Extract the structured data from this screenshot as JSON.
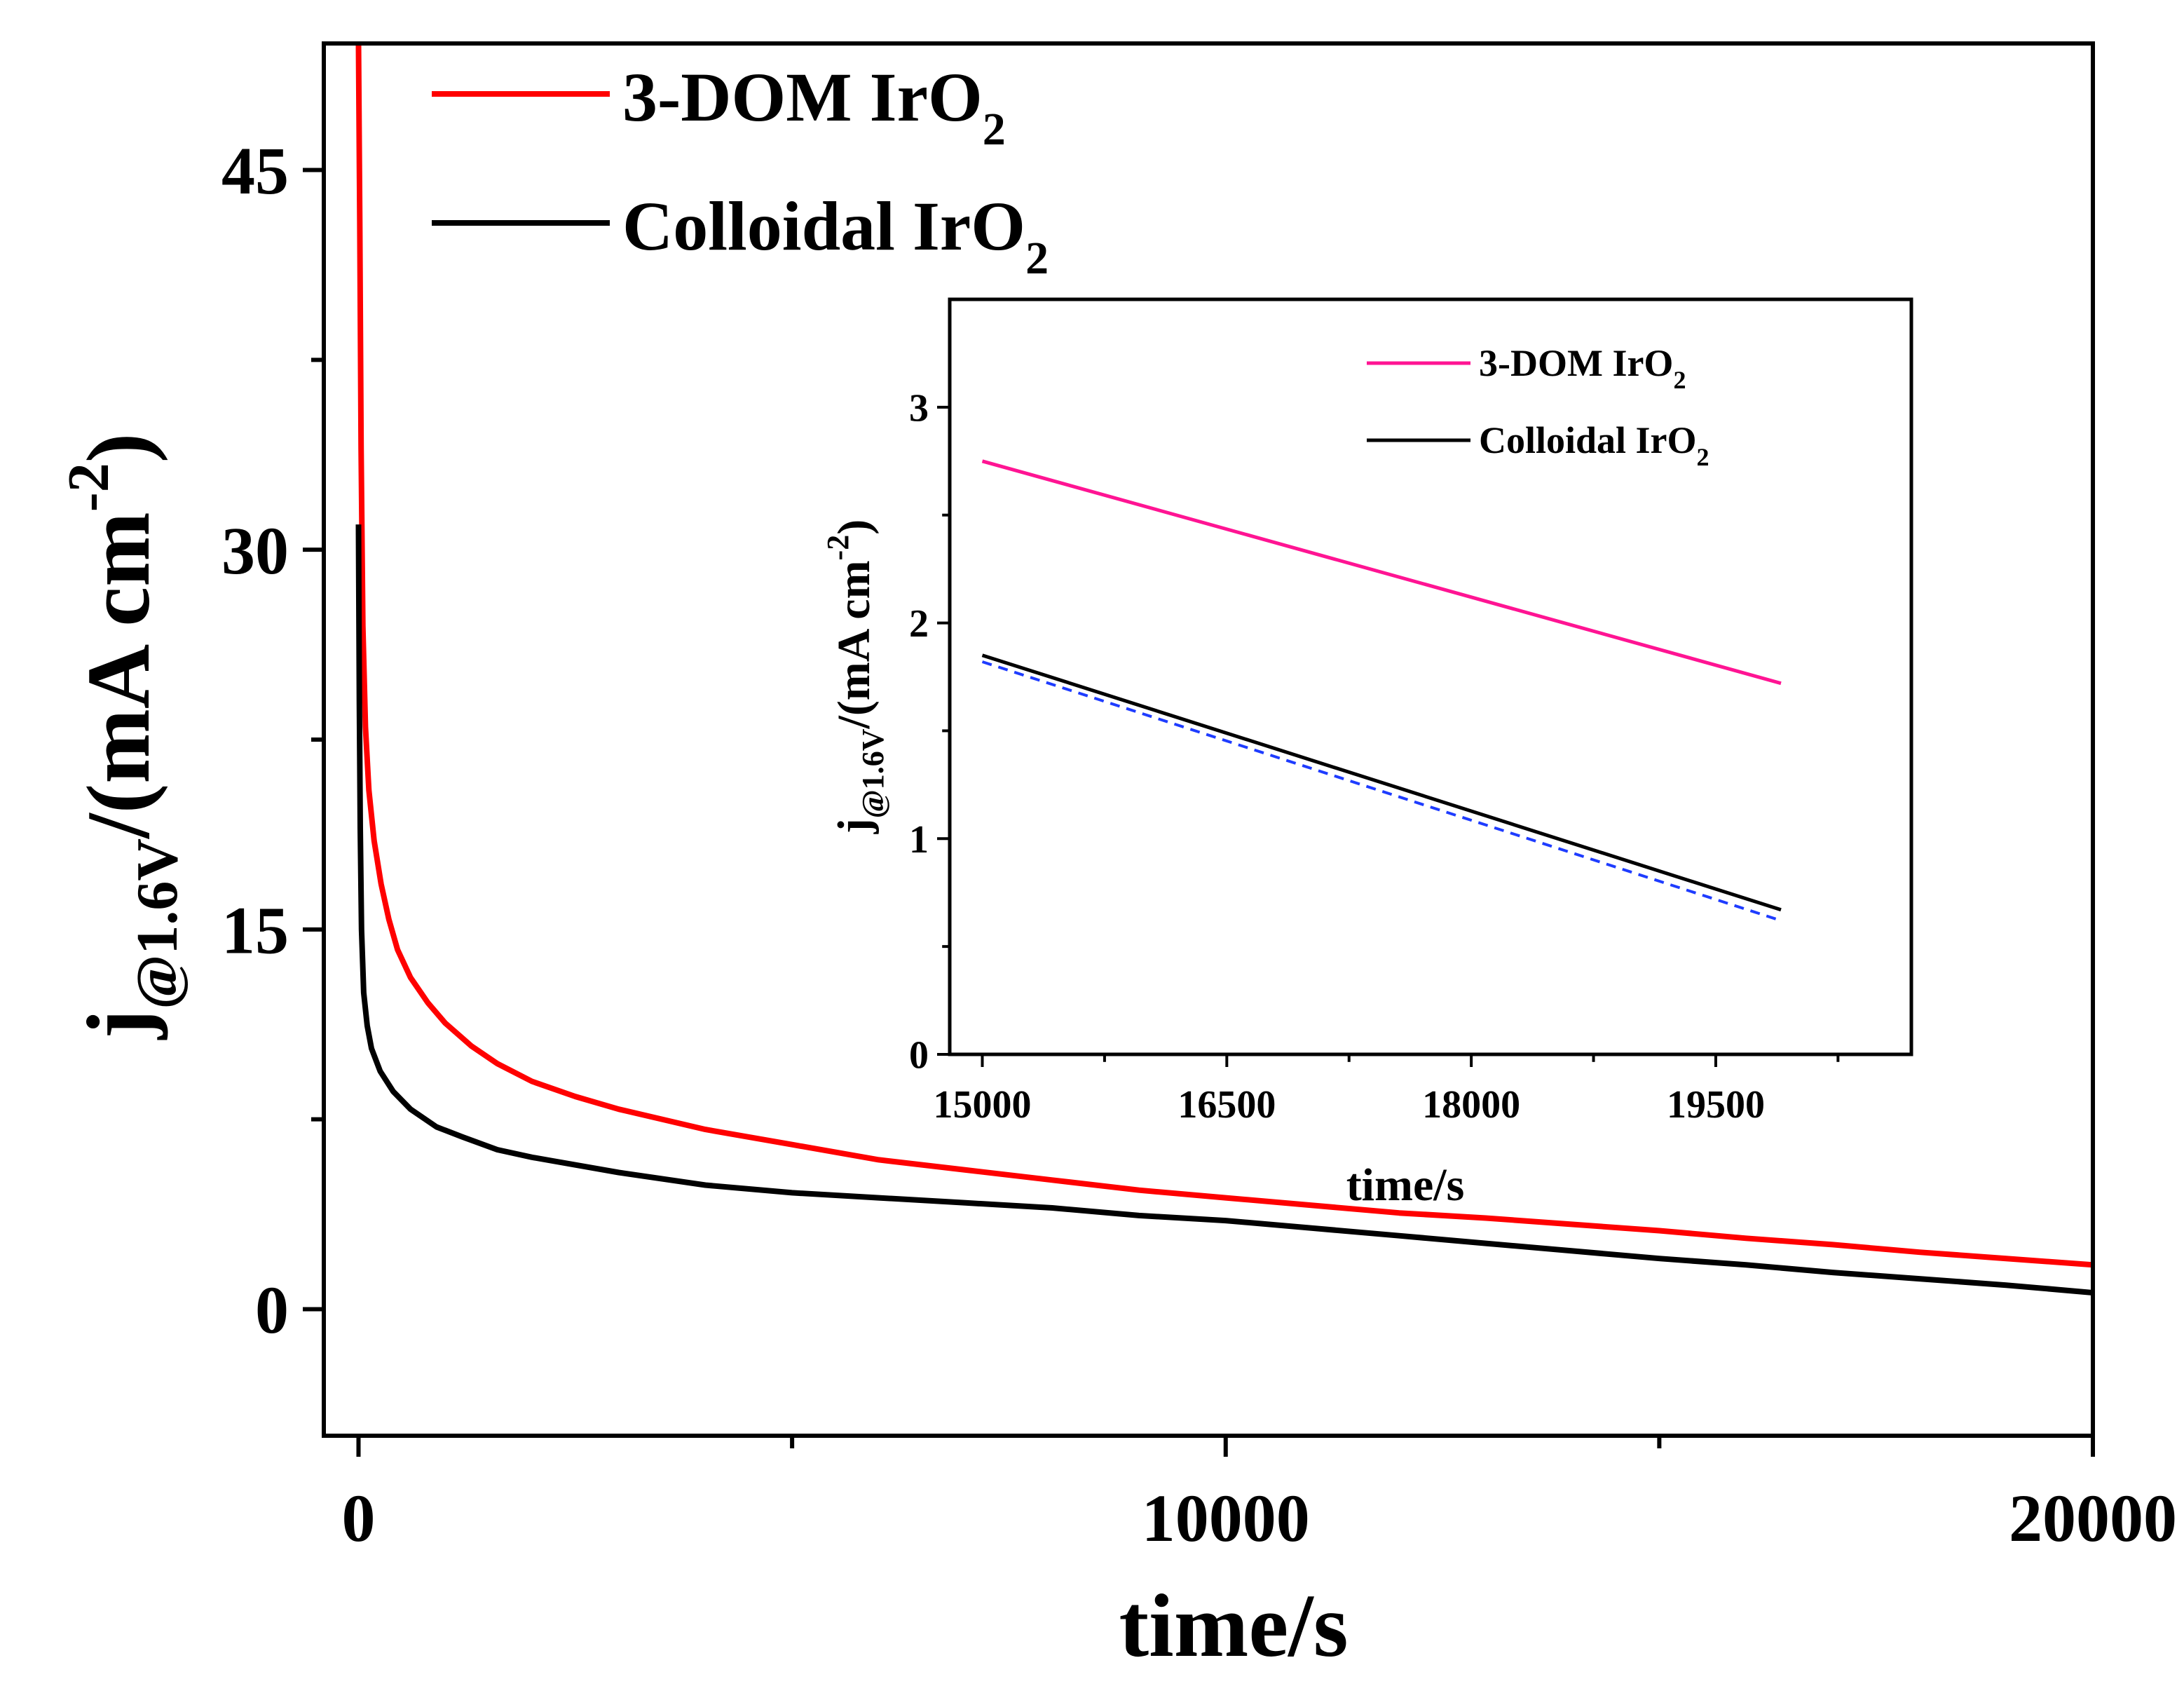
{
  "colors": {
    "background": "#ffffff",
    "axis": "#000000",
    "dom_main": "#ff0000",
    "colloidal_main": "#000000",
    "dom_inset": "#ff1493",
    "colloidal_inset": "#000000",
    "colloidal_inset_fit": "#1e3cff"
  },
  "chart_data": [
    {
      "type": "line",
      "xlabel": "time/s",
      "ylabel": {
        "main": "j",
        "subscript": "@1.6V",
        "rest": "/(mA cm",
        "superscript": "-2",
        "close": ")"
      },
      "xlim": [
        -400,
        20000
      ],
      "ylim": [
        -5,
        50
      ],
      "xticks": [
        0,
        10000,
        20000
      ],
      "xtick_labels": [
        "0",
        "10000",
        "20000"
      ],
      "yticks": [
        0,
        15,
        30,
        45
      ],
      "ytick_labels": [
        "0",
        "15",
        "30",
        "45"
      ],
      "grid": false,
      "legend_placement": "top-left",
      "series": [
        {
          "name": {
            "main": "3-DOM IrO",
            "subscript": "2"
          },
          "color": "#ff0000",
          "x": [
            0,
            15,
            30,
            50,
            80,
            120,
            180,
            260,
            350,
            450,
            600,
            800,
            1000,
            1300,
            1600,
            2000,
            2500,
            3000,
            3500,
            4000,
            5000,
            6000,
            7000,
            8000,
            9000,
            10000,
            11000,
            12000,
            13000,
            14000,
            15000,
            16000,
            17000,
            18000,
            19000,
            20000
          ],
          "y": [
            50,
            43,
            34,
            27,
            23,
            20.5,
            18.5,
            16.8,
            15.4,
            14.2,
            13.1,
            12.1,
            11.3,
            10.4,
            9.7,
            9.0,
            8.4,
            7.9,
            7.5,
            7.1,
            6.5,
            5.9,
            5.5,
            5.1,
            4.7,
            4.4,
            4.1,
            3.8,
            3.6,
            3.35,
            3.1,
            2.8,
            2.55,
            2.25,
            2.0,
            1.75
          ]
        },
        {
          "name": {
            "main": "Colloidal IrO",
            "subscript": "2"
          },
          "color": "#000000",
          "x": [
            0,
            10,
            20,
            35,
            60,
            100,
            150,
            250,
            400,
            600,
            900,
            1200,
            1600,
            2000,
            3000,
            4000,
            5000,
            6000,
            7000,
            8000,
            9000,
            10000,
            11000,
            12000,
            13000,
            14000,
            15000,
            16000,
            17000,
            18000,
            19000,
            20000
          ],
          "y": [
            31,
            24,
            19,
            15,
            12.5,
            11.2,
            10.3,
            9.4,
            8.6,
            7.9,
            7.2,
            6.8,
            6.3,
            6.0,
            5.4,
            4.9,
            4.6,
            4.4,
            4.2,
            4.0,
            3.7,
            3.5,
            3.2,
            2.9,
            2.6,
            2.3,
            2.0,
            1.75,
            1.45,
            1.2,
            0.95,
            0.65
          ]
        }
      ]
    },
    {
      "type": "line",
      "xlabel": "time/s",
      "ylabel": {
        "main": "j",
        "subscript": "@1.6V",
        "rest": "/(mA cm",
        "superscript": "-2",
        "close": ")"
      },
      "xlim": [
        14800,
        20700
      ],
      "ylim": [
        0,
        3.5
      ],
      "xticks": [
        15000,
        16500,
        18000,
        19500
      ],
      "xtick_labels": [
        "15000",
        "16500",
        "18000",
        "19500"
      ],
      "yticks": [
        0,
        1,
        2,
        3
      ],
      "ytick_labels": [
        "0",
        "1",
        "2",
        "3"
      ],
      "grid": false,
      "legend_placement": "top-right",
      "series": [
        {
          "name": {
            "main": "3-DOM IrO",
            "subscript": "2"
          },
          "color": "#ff1493",
          "x": [
            15000,
            19900
          ],
          "y": [
            2.75,
            1.72
          ]
        },
        {
          "name": {
            "main": "Colloidal IrO",
            "subscript": "2"
          },
          "color": "#000000",
          "x": [
            15000,
            19900
          ],
          "y": [
            1.85,
            0.67
          ]
        },
        {
          "color": "#1e3cff",
          "dashed": true,
          "x": [
            15000,
            19900
          ],
          "y": [
            1.82,
            0.62
          ]
        }
      ]
    }
  ]
}
